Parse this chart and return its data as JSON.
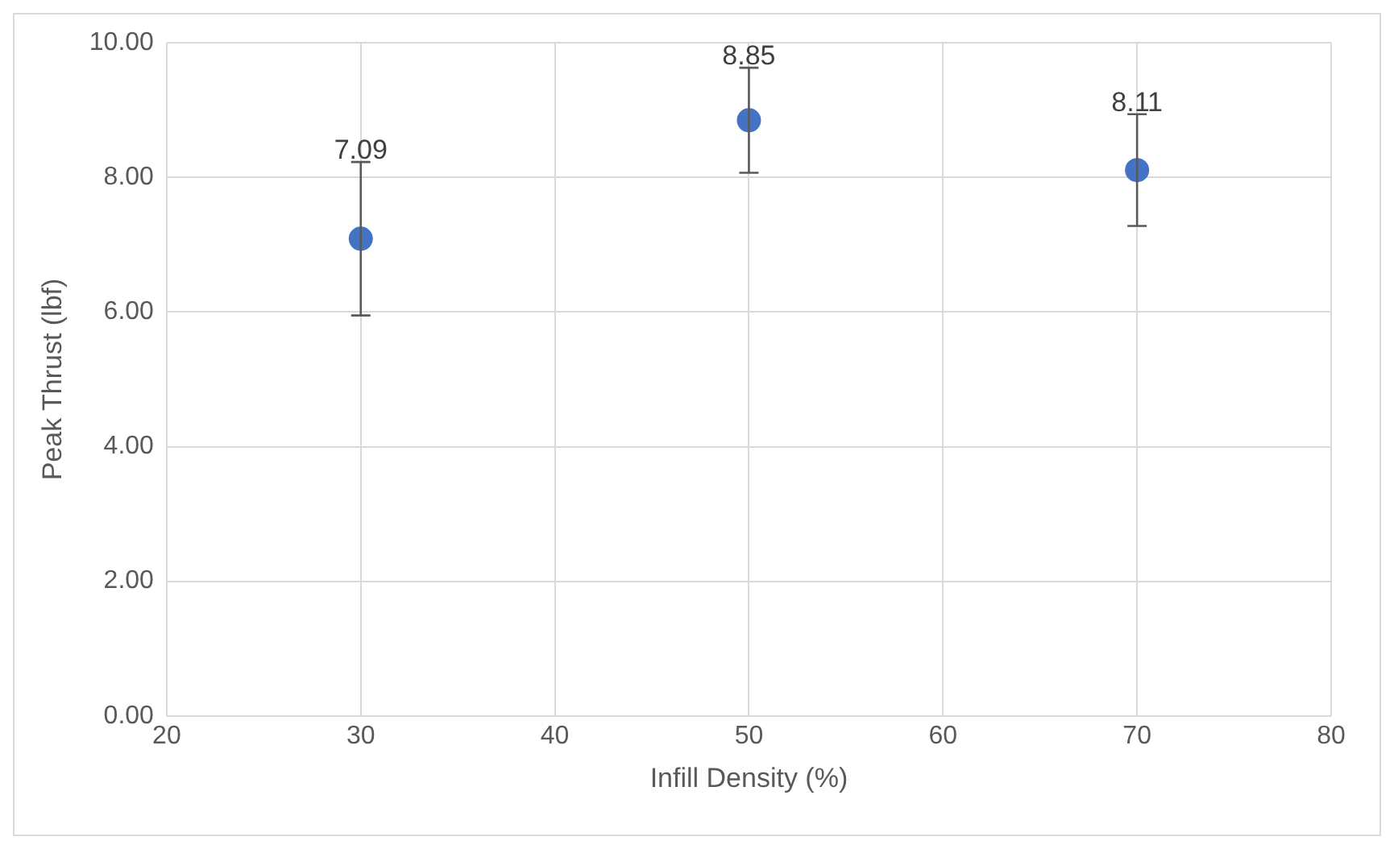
{
  "chart_data": {
    "type": "scatter",
    "xlabel": "Infill Density (%)",
    "ylabel": "Peak Thrust (lbf)",
    "x": [
      30,
      50,
      70
    ],
    "series": [
      {
        "color": "#4472c4",
        "values": [
          7.09,
          8.85,
          8.11
        ],
        "errors": [
          1.14,
          0.78,
          0.83
        ]
      }
    ],
    "data_labels": true,
    "marker": "circle",
    "grid": true,
    "legend": false,
    "xlim": [
      20,
      80
    ],
    "xticks": [
      20,
      30,
      40,
      50,
      60,
      70,
      80
    ],
    "ylim": [
      0,
      10
    ],
    "yticks": [
      {
        "value": 0,
        "label": "0.00"
      },
      {
        "value": 2,
        "label": "2.00"
      },
      {
        "value": 4,
        "label": "4.00"
      },
      {
        "value": 6,
        "label": "6.00"
      },
      {
        "value": 8,
        "label": "8.00"
      },
      {
        "value": 10,
        "label": "10.00"
      }
    ]
  }
}
